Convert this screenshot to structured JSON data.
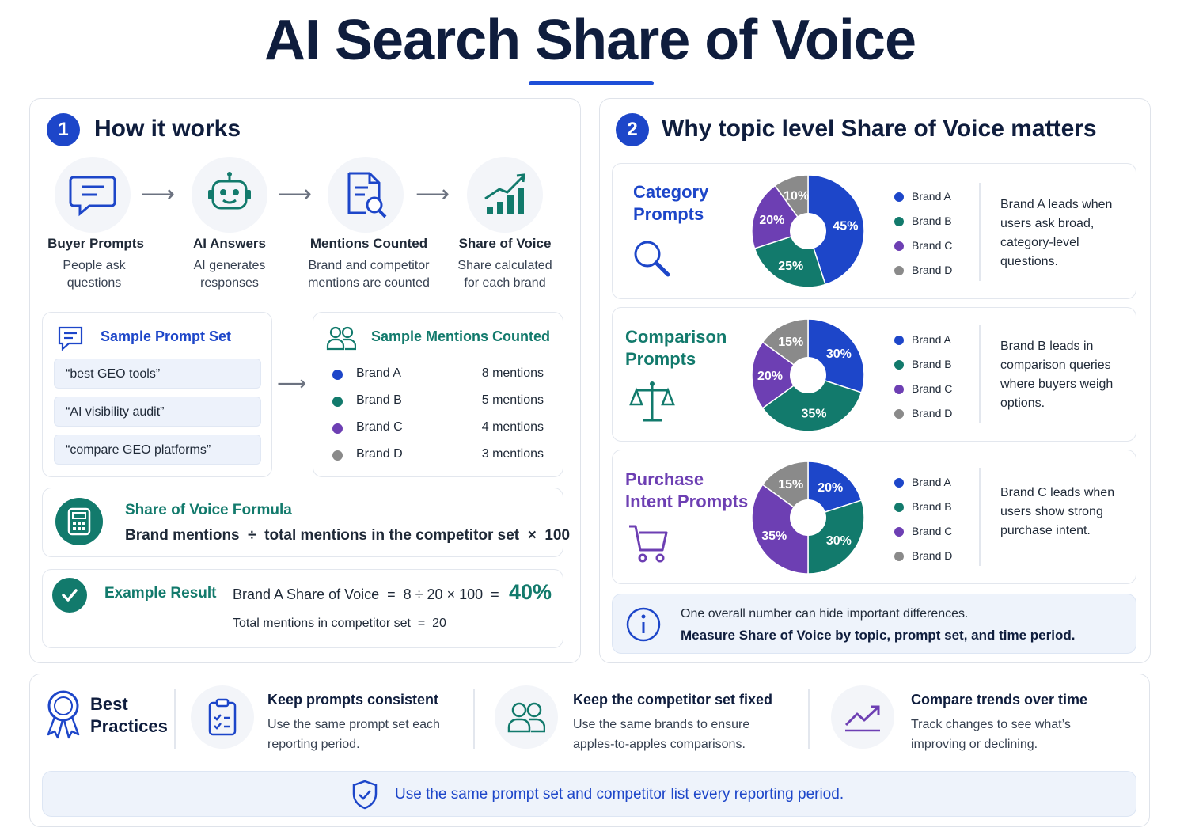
{
  "title": "AI Search Share of Voice",
  "section1": {
    "number": "1",
    "title": "How it works",
    "steps": [
      {
        "icon": "chat-bubble-icon",
        "title": "Buyer Prompts",
        "desc": "People ask questions"
      },
      {
        "icon": "robot-icon",
        "title": "AI Answers",
        "desc": "AI generates responses"
      },
      {
        "icon": "document-search-icon",
        "title": "Mentions Counted",
        "desc": "Brand and competitor mentions are counted"
      },
      {
        "icon": "bar-growth-icon",
        "title": "Share of Voice",
        "desc": "Share calculated for each brand"
      }
    ],
    "prompt_set": {
      "title": "Sample Prompt Set",
      "prompts": [
        "“best GEO tools”",
        "“AI visibility audit”",
        "“compare GEO platforms”"
      ]
    },
    "mentions": {
      "title": "Sample Mentions Counted",
      "rows": [
        {
          "brand": "Brand A",
          "count": "8  mentions",
          "color": "#1d46c9"
        },
        {
          "brand": "Brand B",
          "count": "5  mentions",
          "color": "#127a6c"
        },
        {
          "brand": "Brand C",
          "count": "4  mentions",
          "color": "#6d3fb3"
        },
        {
          "brand": "Brand D",
          "count": "3  mentions",
          "color": "#8a8a8a"
        }
      ]
    },
    "formula": {
      "title": "Share of Voice Formula",
      "text": "Brand mentions  ÷  total mentions in the competitor set  ×  100"
    },
    "example": {
      "title": "Example Result",
      "equation": "Brand A Share of Voice  =  8 ÷ 20 × 100  =",
      "result": "40%",
      "sub": "Total mentions in competitor set  =  20"
    }
  },
  "section2": {
    "number": "2",
    "title": "Why topic level Share of Voice matters",
    "legend": [
      "Brand A",
      "Brand B",
      "Brand C",
      "Brand D"
    ],
    "topics": [
      {
        "name": "Category Prompts",
        "name_color": "#1d46c9",
        "icon": "magnifier-icon",
        "values": [
          45,
          25,
          20,
          10
        ],
        "labels": [
          "45%",
          "25%",
          "20%",
          "10%"
        ],
        "note": "Brand A leads when users ask broad, category-level questions."
      },
      {
        "name": "Comparison Prompts",
        "name_color": "#127a6c",
        "icon": "scale-icon",
        "values": [
          30,
          35,
          20,
          15
        ],
        "labels": [
          "30%",
          "35%",
          "20%",
          "15%"
        ],
        "note": "Brand B leads in comparison queries where buyers weigh options."
      },
      {
        "name": "Purchase Intent Prompts",
        "name_color": "#6d3fb3",
        "icon": "cart-icon",
        "values": [
          20,
          30,
          35,
          15
        ],
        "labels": [
          "20%",
          "30%",
          "35%",
          "15%"
        ],
        "note": "Brand C leads when users show strong purchase intent."
      }
    ],
    "info": {
      "line1": "One overall number can hide important differences.",
      "line2": "Measure Share of Voice by topic, prompt set, and time period."
    }
  },
  "colors": {
    "brand_a": "#1d46c9",
    "brand_b": "#127a6c",
    "brand_c": "#6d3fb3",
    "brand_d": "#8a8a8a",
    "title": "#0f1d3d"
  },
  "best_practices": {
    "title": "Best Practices",
    "items": [
      {
        "icon": "checklist-icon",
        "title": "Keep prompts consistent",
        "desc": "Use the same prompt set each reporting period."
      },
      {
        "icon": "users-icon",
        "title": "Keep the competitor set fixed",
        "desc": "Use the same brands to ensure apples-to-apples comparisons."
      },
      {
        "icon": "trend-up-icon",
        "title": "Compare trends over time",
        "desc": "Track changes to see what’s improving or declining."
      }
    ],
    "banner": "Use the same prompt set and competitor list every reporting period."
  }
}
